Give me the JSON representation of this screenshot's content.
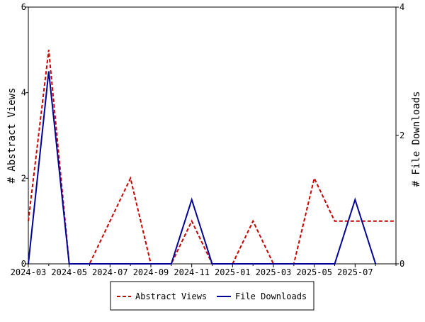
{
  "chart_data": {
    "type": "line",
    "x": [
      "2024-03",
      "2024-04",
      "2024-05",
      "2024-06",
      "2024-07",
      "2024-08",
      "2024-09",
      "2024-10",
      "2024-11",
      "2024-12",
      "2025-01",
      "2025-02",
      "2025-03",
      "2025-04",
      "2025-05",
      "2025-06",
      "2025-07",
      "2025-08",
      "2025-09"
    ],
    "x_tick_labels": [
      "2024-03",
      "2024-05",
      "2024-07",
      "2024-09",
      "2024-11",
      "2025-01",
      "2025-03",
      "2025-05",
      "2025-07"
    ],
    "series": [
      {
        "name": "Abstract Views",
        "axis": "left",
        "style": "dashed",
        "color": "#cc0000",
        "values": [
          1,
          5,
          0,
          0,
          1,
          2,
          0,
          0,
          1,
          0,
          0,
          1,
          0,
          0,
          2,
          1,
          1,
          1,
          1
        ]
      },
      {
        "name": "File Downloads",
        "axis": "right",
        "style": "solid",
        "color": "#000099",
        "values": [
          0,
          3,
          0,
          0,
          0,
          0,
          0,
          0,
          1,
          0,
          0,
          0,
          0,
          0,
          0,
          0,
          1,
          0,
          null
        ]
      }
    ],
    "ylabel": "# Abstract Views",
    "y2label": "# File Downloads",
    "ylim": [
      0,
      6
    ],
    "y2lim": [
      0,
      4
    ],
    "yticks": [
      0,
      2,
      4,
      6
    ],
    "y2ticks": [
      0,
      2,
      4
    ],
    "grid": false,
    "legend_placement": "bottom-center"
  }
}
